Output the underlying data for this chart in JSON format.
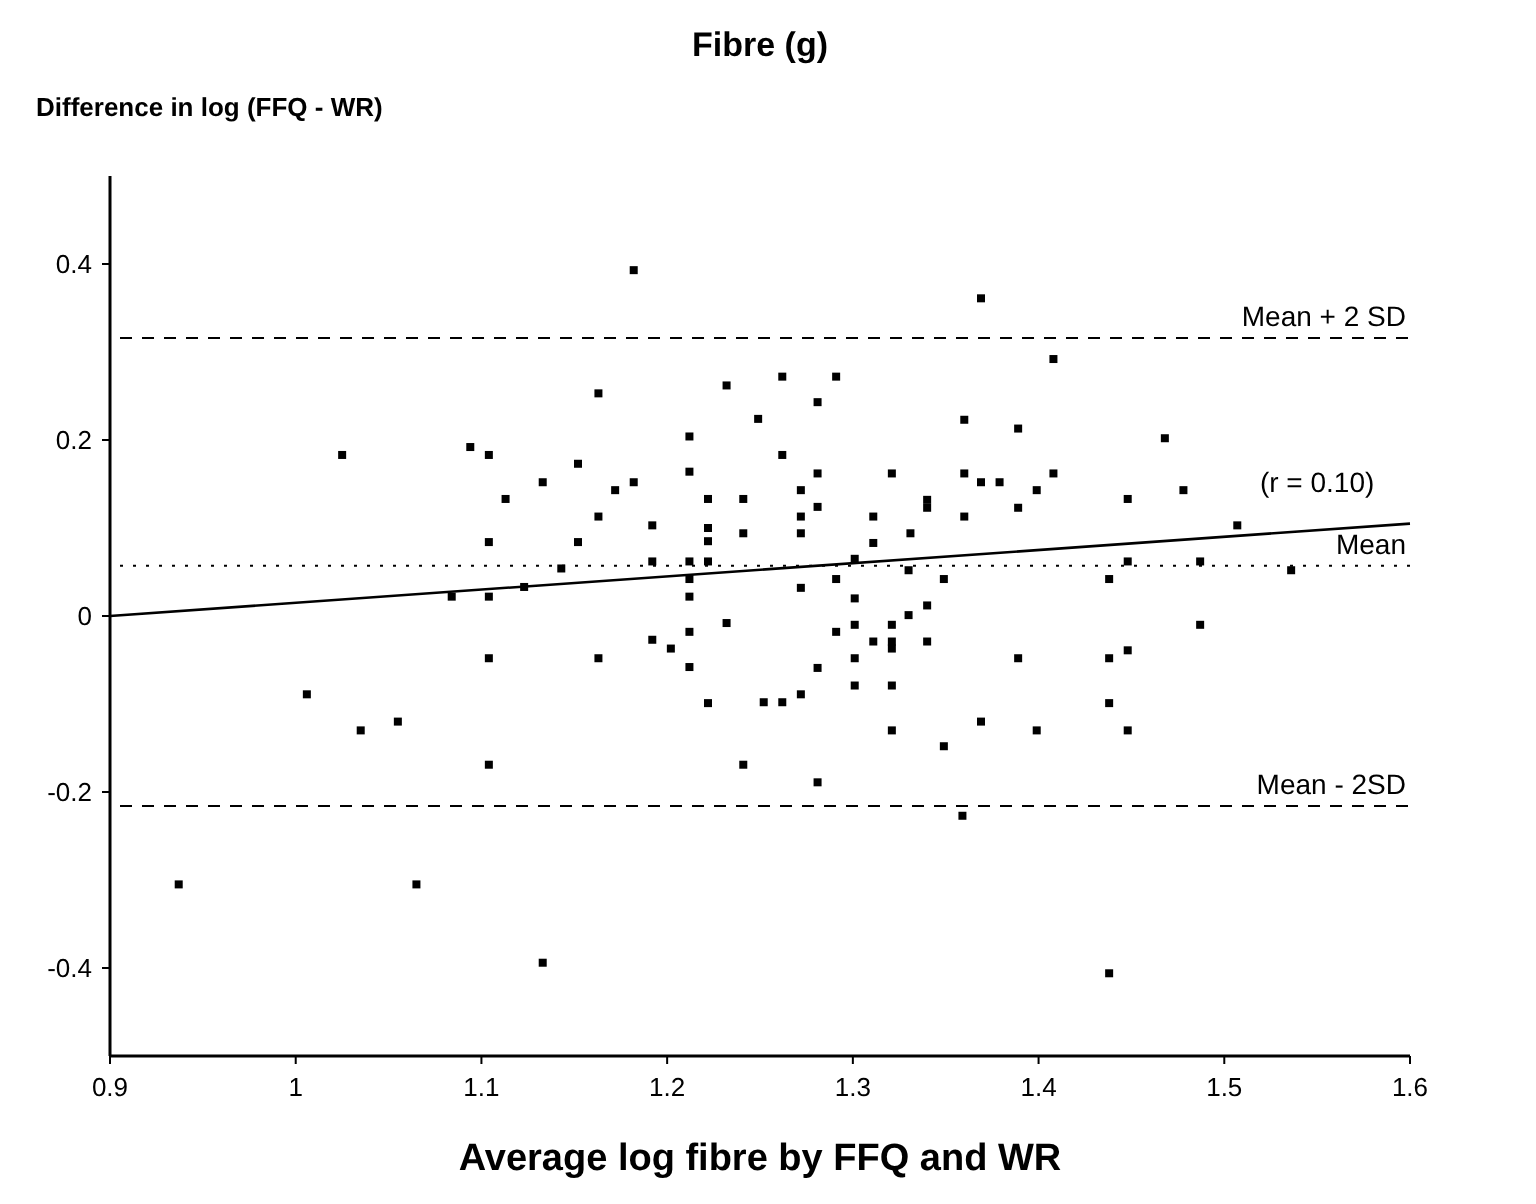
{
  "chart_data": {
    "type": "scatter",
    "title": "Fibre (g)",
    "ylabel": "Difference in log (FFQ - WR)",
    "xlabel": "Average log fibre by FFQ and WR",
    "xlim": [
      0.9,
      1.6
    ],
    "xticks": [
      0.9,
      1,
      1.1,
      1.2,
      1.3,
      1.4,
      1.5,
      1.6
    ],
    "ylim": [
      -0.5,
      0.5
    ],
    "yticks": [
      -0.4,
      -0.2,
      0,
      0.2,
      0.4
    ],
    "grid": false,
    "series": [
      {
        "color": "#000000",
        "marker": "square",
        "x": [
          1.182,
          1.163,
          1.232,
          1.249,
          1.025,
          1.094,
          1.104,
          1.212,
          1.113,
          1.133,
          1.152,
          1.172,
          1.182,
          1.212,
          1.222,
          1.241,
          1.163,
          1.192,
          1.222,
          1.222,
          1.241,
          1.104,
          1.152,
          1.143,
          1.192,
          1.212,
          1.222,
          1.212,
          1.212,
          1.084,
          1.104,
          1.123,
          1.232,
          1.192,
          1.202,
          1.212,
          1.212,
          1.104,
          1.163,
          1.222,
          1.252,
          1.262,
          1.006,
          1.035,
          1.055,
          1.104,
          1.241,
          0.937,
          1.065,
          1.133,
          1.369,
          1.408,
          1.262,
          1.291,
          1.281,
          1.36,
          1.389,
          1.468,
          1.262,
          1.281,
          1.321,
          1.36,
          1.369,
          1.379,
          1.399,
          1.408,
          1.448,
          1.478,
          1.272,
          1.272,
          1.281,
          1.311,
          1.34,
          1.34,
          1.36,
          1.389,
          1.507,
          1.272,
          1.311,
          1.331,
          1.301,
          1.448,
          1.487,
          1.536,
          1.33,
          1.272,
          1.291,
          1.349,
          1.438,
          1.301,
          1.301,
          1.321,
          1.33,
          1.34,
          1.291,
          1.311,
          1.321,
          1.321,
          1.34,
          1.487,
          1.281,
          1.301,
          1.389,
          1.438,
          1.448,
          1.301,
          1.321,
          1.272,
          1.438,
          1.321,
          1.369,
          1.399,
          1.448,
          1.349,
          1.281,
          1.359,
          1.438
        ],
        "values": [
          0.393,
          0.253,
          0.262,
          0.224,
          0.183,
          0.192,
          0.183,
          0.204,
          0.133,
          0.152,
          0.173,
          0.143,
          0.152,
          0.164,
          0.133,
          0.133,
          0.113,
          0.103,
          0.1,
          0.085,
          0.094,
          0.084,
          0.084,
          0.054,
          0.062,
          0.062,
          0.062,
          0.042,
          0.022,
          0.022,
          0.022,
          0.033,
          -0.008,
          -0.027,
          -0.037,
          -0.018,
          -0.058,
          -0.048,
          -0.048,
          -0.099,
          -0.098,
          -0.098,
          -0.089,
          -0.13,
          -0.12,
          -0.169,
          -0.169,
          -0.305,
          -0.305,
          -0.394,
          0.361,
          0.292,
          0.272,
          0.272,
          0.243,
          0.223,
          0.213,
          0.202,
          0.183,
          0.162,
          0.162,
          0.162,
          0.152,
          0.152,
          0.143,
          0.162,
          0.133,
          0.143,
          0.143,
          0.113,
          0.124,
          0.113,
          0.132,
          0.123,
          0.113,
          0.123,
          0.103,
          0.094,
          0.083,
          0.094,
          0.065,
          0.062,
          0.062,
          0.052,
          0.052,
          0.032,
          0.042,
          0.042,
          0.042,
          0.02,
          -0.01,
          -0.01,
          0.001,
          0.012,
          -0.018,
          -0.029,
          -0.029,
          -0.037,
          -0.029,
          -0.01,
          -0.059,
          -0.048,
          -0.048,
          -0.048,
          -0.039,
          -0.079,
          -0.079,
          -0.089,
          -0.099,
          -0.13,
          -0.12,
          -0.13,
          -0.13,
          -0.148,
          -0.189,
          -0.227,
          -0.406
        ]
      },
      {
        "type": "line",
        "color": "#000000",
        "line_style": "solid",
        "marker": "none",
        "x": [
          0.9,
          1.6
        ],
        "values": [
          0,
          0.105
        ]
      }
    ],
    "ref_lines": [
      {
        "axis": "y",
        "value": 0.316,
        "label": "Mean + 2 SD",
        "line_style": "dashed",
        "color": "#000000"
      },
      {
        "axis": "y",
        "value": 0.057,
        "label": "Mean",
        "line_style": "dotted",
        "color": "#000000"
      },
      {
        "axis": "y",
        "value": -0.216,
        "label": "Mean - 2SD",
        "line_style": "dashed",
        "color": "#000000"
      }
    ],
    "annotations": [
      {
        "text": "(r = 0.10)",
        "x": 1.55,
        "y": 0.1
      }
    ]
  }
}
